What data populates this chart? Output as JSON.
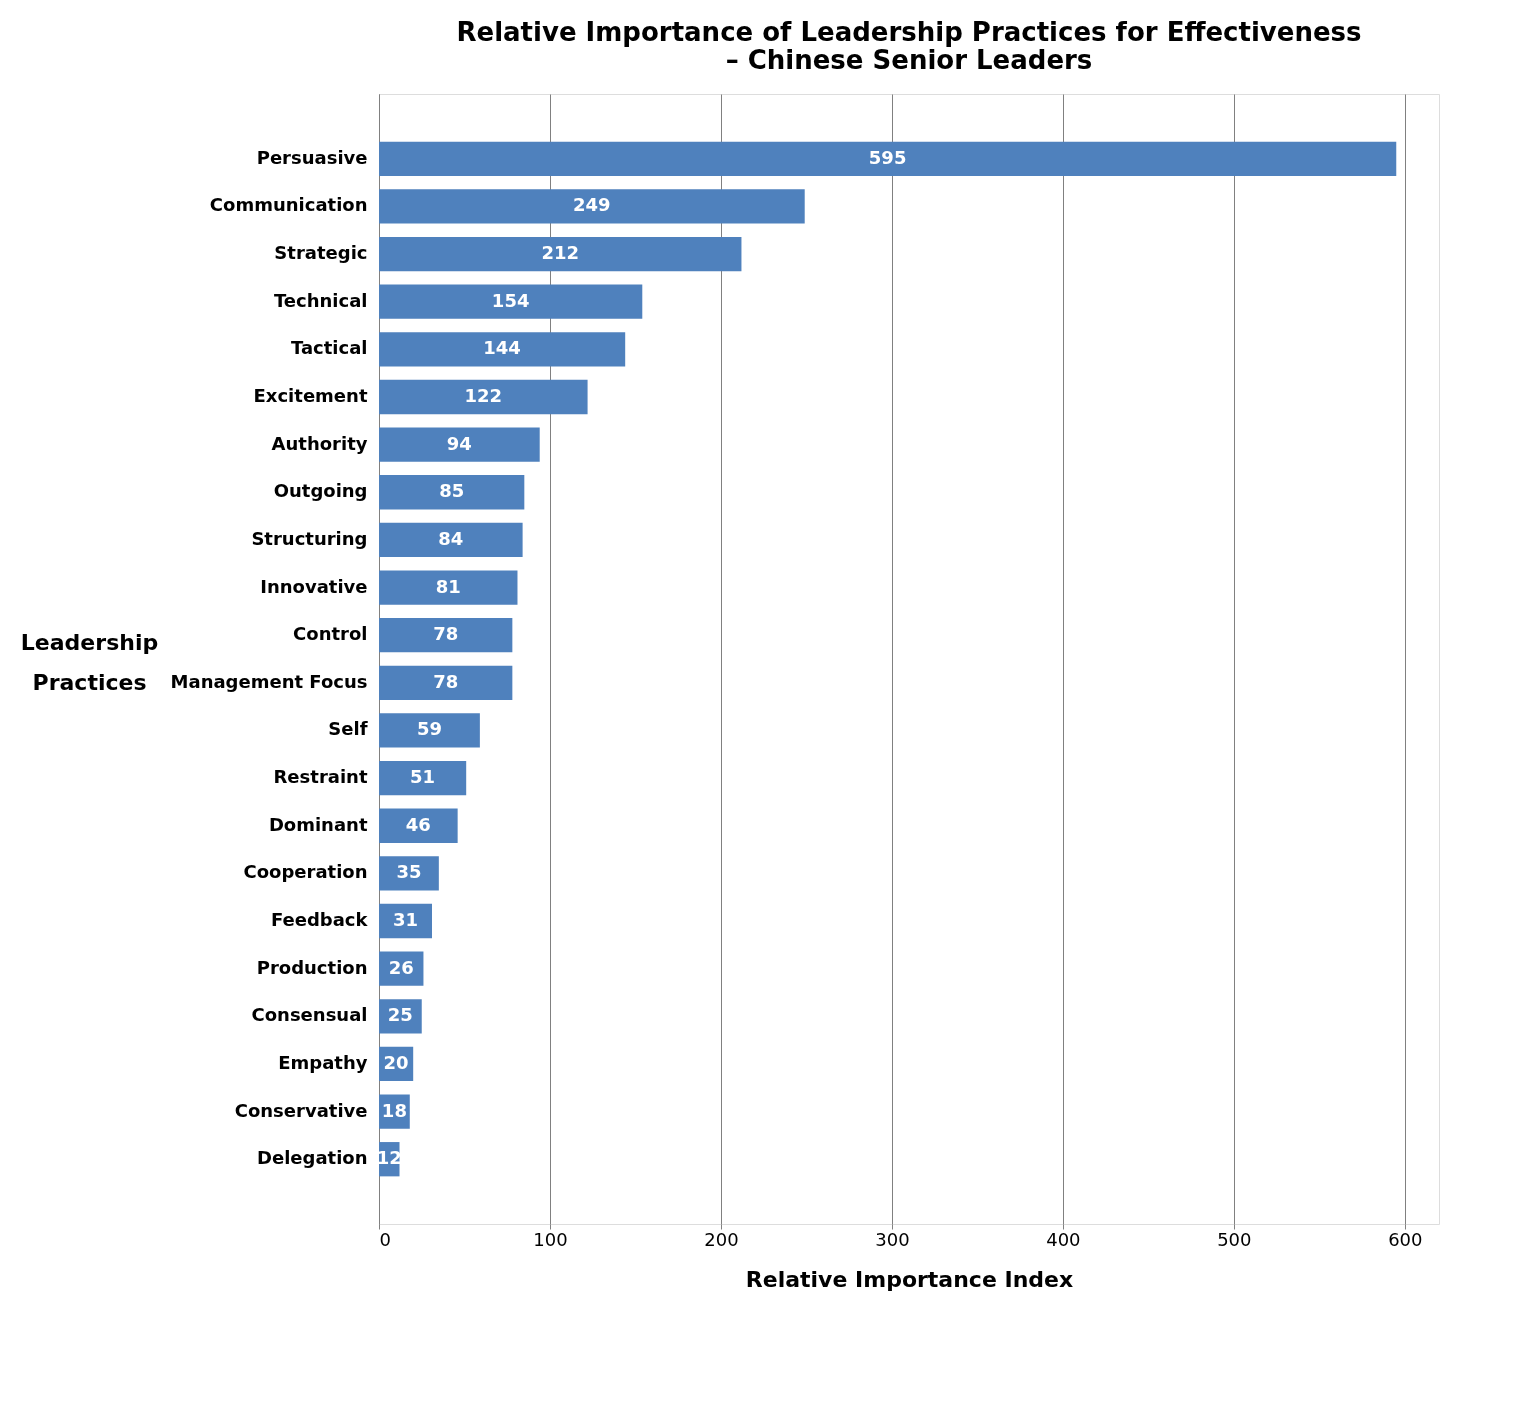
{
  "chart_data": {
    "type": "bar",
    "orientation": "horizontal",
    "title": [
      "Relative Importance of Leadership Practices for Effectiveness",
      "– Chinese Senior Leaders"
    ],
    "xlabel": "Relative Importance Index",
    "ylabel": "Leadership Practices",
    "categories": [
      "Persuasive",
      "Communication",
      "Strategic",
      "Technical",
      "Tactical",
      "Excitement",
      "Authority",
      "Outgoing",
      "Structuring",
      "Innovative",
      "Control",
      "Management Focus",
      "Self",
      "Restraint",
      "Dominant",
      "Cooperation",
      "Feedback",
      "Production",
      "Consensual",
      "Empathy",
      "Conservative",
      "Delegation"
    ],
    "values": [
      595,
      249,
      212,
      154,
      144,
      122,
      94,
      85,
      84,
      81,
      78,
      78,
      59,
      51,
      46,
      35,
      31,
      26,
      25,
      20,
      18,
      12
    ],
    "color": "#4f81bd",
    "xlim": [
      0,
      620
    ],
    "xticks": [
      0,
      100,
      200,
      300,
      400,
      500,
      600
    ],
    "grid": "x",
    "data_labels": true
  }
}
